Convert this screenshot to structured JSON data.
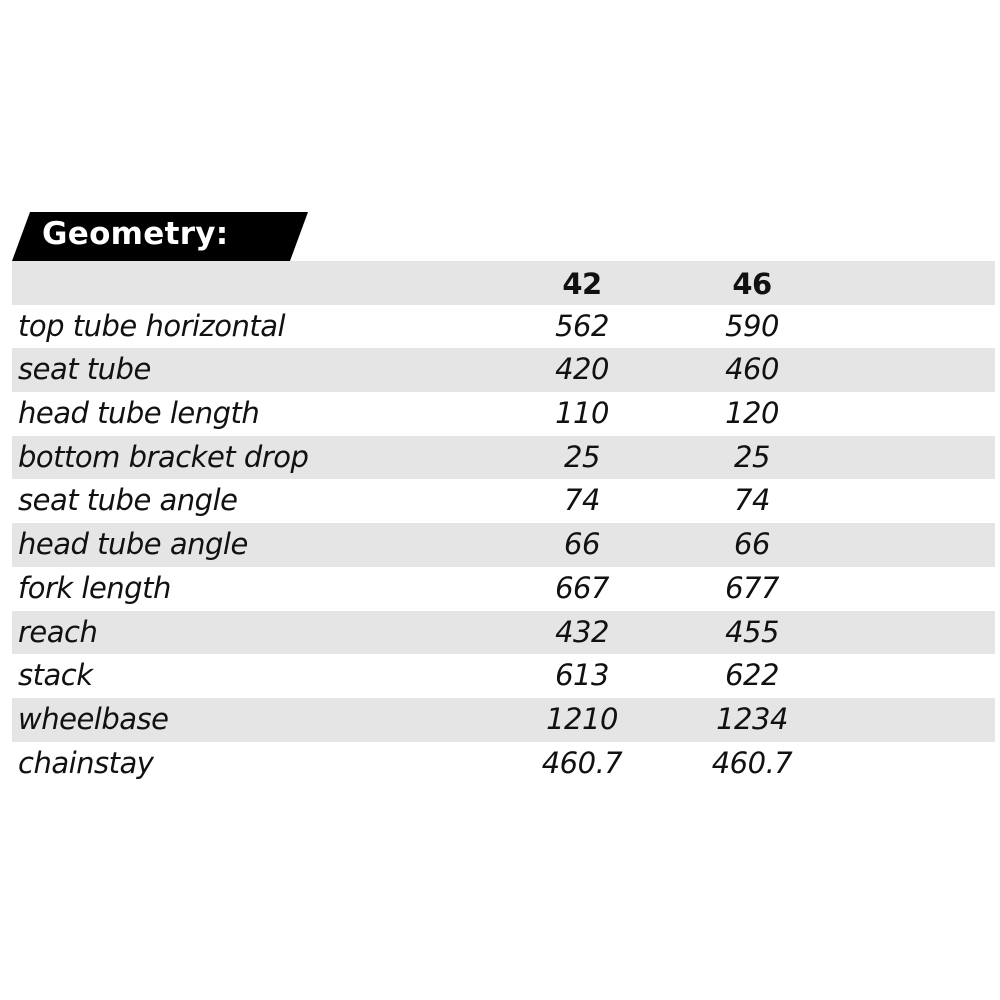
{
  "title": "Geometry:",
  "columns": [
    "42",
    "46"
  ],
  "rows": [
    {
      "label": "top tube horizontal",
      "values": [
        "562",
        "590"
      ]
    },
    {
      "label": "seat tube",
      "values": [
        "420",
        "460"
      ]
    },
    {
      "label": "head tube length",
      "values": [
        "110",
        "120"
      ]
    },
    {
      "label": "bottom bracket drop",
      "values": [
        "25",
        "25"
      ]
    },
    {
      "label": "seat tube angle",
      "values": [
        "74",
        "74"
      ]
    },
    {
      "label": "head tube angle",
      "values": [
        "66",
        "66"
      ]
    },
    {
      "label": "fork length",
      "values": [
        "667",
        "677"
      ]
    },
    {
      "label": "reach",
      "values": [
        "432",
        "455"
      ]
    },
    {
      "label": "stack",
      "values": [
        "613",
        "622"
      ]
    },
    {
      "label": "wheelbase",
      "values": [
        "1210",
        "1234"
      ]
    },
    {
      "label": "chainstay",
      "values": [
        "460.7",
        "460.7"
      ]
    }
  ],
  "colors": {
    "banner": "#000000",
    "stripe": "#e5e5e5"
  }
}
